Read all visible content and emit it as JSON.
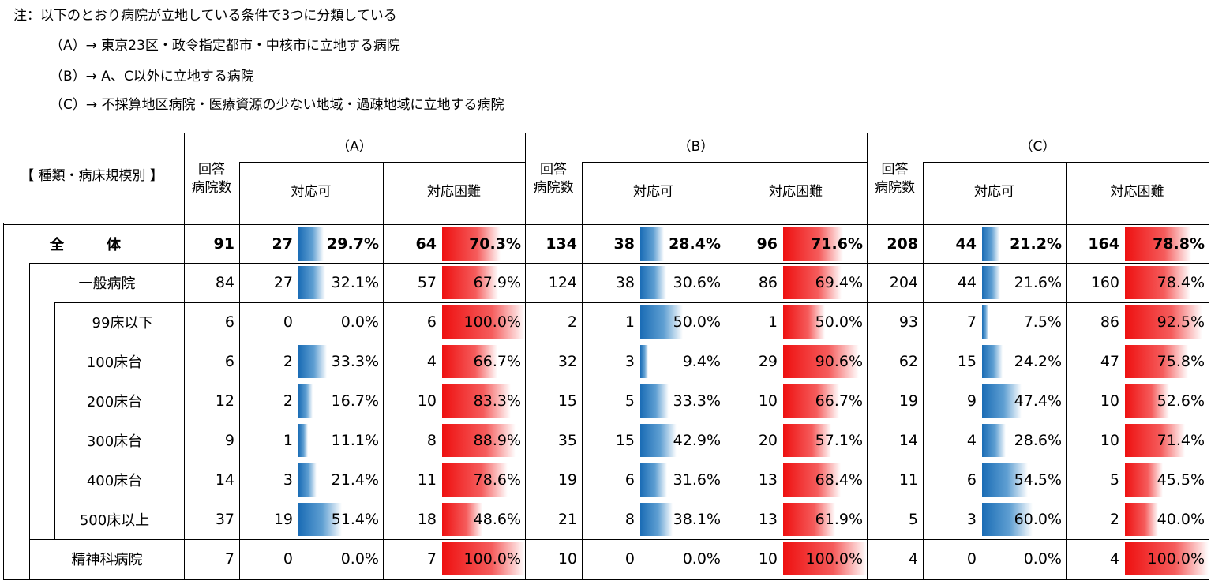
{
  "notes": [
    "注：以下のとおり病院が立地している条件で3つに分類している",
    "（A）→  東京23区・政令指定都市・中核市に立地する病院",
    "（B）→  A、C以外に立地する病院",
    "（C）→  不採算地区病院・医療資源の少ない地域・過疎地域に立地する病院"
  ],
  "header": {
    "category_label": "【 種類・病床規模別 】",
    "respondents_label": "回答\n病院数",
    "ok_label": "対応可",
    "difficult_label": "対応困難",
    "groups": [
      "（A）",
      "（B）",
      "（C）"
    ]
  },
  "rows": [
    {
      "label": "全　　　体",
      "bold": true,
      "groups": [
        {
          "n": "91",
          "ok": "27",
          "ok_pct": "29.7%",
          "ok_v": 29.7,
          "ng": "64",
          "ng_pct": "70.3%",
          "ng_v": 70.3
        },
        {
          "n": "134",
          "ok": "38",
          "ok_pct": "28.4%",
          "ok_v": 28.4,
          "ng": "96",
          "ng_pct": "71.6%",
          "ng_v": 71.6
        },
        {
          "n": "208",
          "ok": "44",
          "ok_pct": "21.2%",
          "ok_v": 21.2,
          "ng": "164",
          "ng_pct": "78.8%",
          "ng_v": 78.8
        }
      ]
    },
    {
      "label": "一般病院",
      "bold": false,
      "groups": [
        {
          "n": "84",
          "ok": "27",
          "ok_pct": "32.1%",
          "ok_v": 32.1,
          "ng": "57",
          "ng_pct": "67.9%",
          "ng_v": 67.9
        },
        {
          "n": "124",
          "ok": "38",
          "ok_pct": "30.6%",
          "ok_v": 30.6,
          "ng": "86",
          "ng_pct": "69.4%",
          "ng_v": 69.4
        },
        {
          "n": "204",
          "ok": "44",
          "ok_pct": "21.6%",
          "ok_v": 21.6,
          "ng": "160",
          "ng_pct": "78.4%",
          "ng_v": 78.4
        }
      ]
    },
    {
      "label": "99床以下",
      "bold": false,
      "groups": [
        {
          "n": "6",
          "ok": "0",
          "ok_pct": "0.0%",
          "ok_v": 0,
          "ng": "6",
          "ng_pct": "100.0%",
          "ng_v": 100
        },
        {
          "n": "2",
          "ok": "1",
          "ok_pct": "50.0%",
          "ok_v": 50,
          "ng": "1",
          "ng_pct": "50.0%",
          "ng_v": 50
        },
        {
          "n": "93",
          "ok": "7",
          "ok_pct": "7.5%",
          "ok_v": 7.5,
          "ng": "86",
          "ng_pct": "92.5%",
          "ng_v": 92.5
        }
      ]
    },
    {
      "label": "100床台",
      "bold": false,
      "groups": [
        {
          "n": "6",
          "ok": "2",
          "ok_pct": "33.3%",
          "ok_v": 33.3,
          "ng": "4",
          "ng_pct": "66.7%",
          "ng_v": 66.7
        },
        {
          "n": "32",
          "ok": "3",
          "ok_pct": "9.4%",
          "ok_v": 9.4,
          "ng": "29",
          "ng_pct": "90.6%",
          "ng_v": 90.6
        },
        {
          "n": "62",
          "ok": "15",
          "ok_pct": "24.2%",
          "ok_v": 24.2,
          "ng": "47",
          "ng_pct": "75.8%",
          "ng_v": 75.8
        }
      ]
    },
    {
      "label": "200床台",
      "bold": false,
      "groups": [
        {
          "n": "12",
          "ok": "2",
          "ok_pct": "16.7%",
          "ok_v": 16.7,
          "ng": "10",
          "ng_pct": "83.3%",
          "ng_v": 83.3
        },
        {
          "n": "15",
          "ok": "5",
          "ok_pct": "33.3%",
          "ok_v": 33.3,
          "ng": "10",
          "ng_pct": "66.7%",
          "ng_v": 66.7
        },
        {
          "n": "19",
          "ok": "9",
          "ok_pct": "47.4%",
          "ok_v": 47.4,
          "ng": "10",
          "ng_pct": "52.6%",
          "ng_v": 52.6
        }
      ]
    },
    {
      "label": "300床台",
      "bold": false,
      "groups": [
        {
          "n": "9",
          "ok": "1",
          "ok_pct": "11.1%",
          "ok_v": 11.1,
          "ng": "8",
          "ng_pct": "88.9%",
          "ng_v": 88.9
        },
        {
          "n": "35",
          "ok": "15",
          "ok_pct": "42.9%",
          "ok_v": 42.9,
          "ng": "20",
          "ng_pct": "57.1%",
          "ng_v": 57.1
        },
        {
          "n": "14",
          "ok": "4",
          "ok_pct": "28.6%",
          "ok_v": 28.6,
          "ng": "10",
          "ng_pct": "71.4%",
          "ng_v": 71.4
        }
      ]
    },
    {
      "label": "400床台",
      "bold": false,
      "groups": [
        {
          "n": "14",
          "ok": "3",
          "ok_pct": "21.4%",
          "ok_v": 21.4,
          "ng": "11",
          "ng_pct": "78.6%",
          "ng_v": 78.6
        },
        {
          "n": "19",
          "ok": "6",
          "ok_pct": "31.6%",
          "ok_v": 31.6,
          "ng": "13",
          "ng_pct": "68.4%",
          "ng_v": 68.4
        },
        {
          "n": "11",
          "ok": "6",
          "ok_pct": "54.5%",
          "ok_v": 54.5,
          "ng": "5",
          "ng_pct": "45.5%",
          "ng_v": 45.5
        }
      ]
    },
    {
      "label": "500床以上",
      "bold": false,
      "groups": [
        {
          "n": "37",
          "ok": "19",
          "ok_pct": "51.4%",
          "ok_v": 51.4,
          "ng": "18",
          "ng_pct": "48.6%",
          "ng_v": 48.6
        },
        {
          "n": "21",
          "ok": "8",
          "ok_pct": "38.1%",
          "ok_v": 38.1,
          "ng": "13",
          "ng_pct": "61.9%",
          "ng_v": 61.9
        },
        {
          "n": "5",
          "ok": "3",
          "ok_pct": "60.0%",
          "ok_v": 60,
          "ng": "2",
          "ng_pct": "40.0%",
          "ng_v": 40
        }
      ]
    },
    {
      "label": "精神科病院",
      "bold": false,
      "groups": [
        {
          "n": "7",
          "ok": "0",
          "ok_pct": "0.0%",
          "ok_v": 0,
          "ng": "7",
          "ng_pct": "100.0%",
          "ng_v": 100
        },
        {
          "n": "10",
          "ok": "0",
          "ok_pct": "0.0%",
          "ok_v": 0,
          "ng": "10",
          "ng_pct": "100.0%",
          "ng_v": 100
        },
        {
          "n": "4",
          "ok": "0",
          "ok_pct": "0.0%",
          "ok_v": 0,
          "ng": "4",
          "ng_pct": "100.0%",
          "ng_v": 100
        }
      ]
    }
  ],
  "colors": {
    "ok_bar": "#1a6cb5",
    "ng_bar": "#ee1010",
    "border": "#000000"
  }
}
